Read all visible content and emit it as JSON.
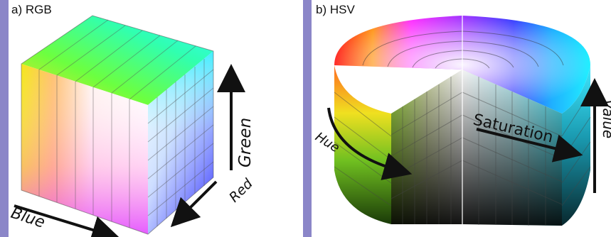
{
  "panels": {
    "a": {
      "caption": "a) RGB",
      "axes": {
        "blue": "Blue",
        "red": "Red",
        "green": "Green"
      }
    },
    "b": {
      "caption": "b) HSV",
      "axes": {
        "hue": "Hue",
        "saturation": "Saturation",
        "value": "Value"
      }
    }
  },
  "colors": {
    "background_border": "#8b86c8",
    "panel": "#ffffff",
    "arrow": "#111111"
  }
}
